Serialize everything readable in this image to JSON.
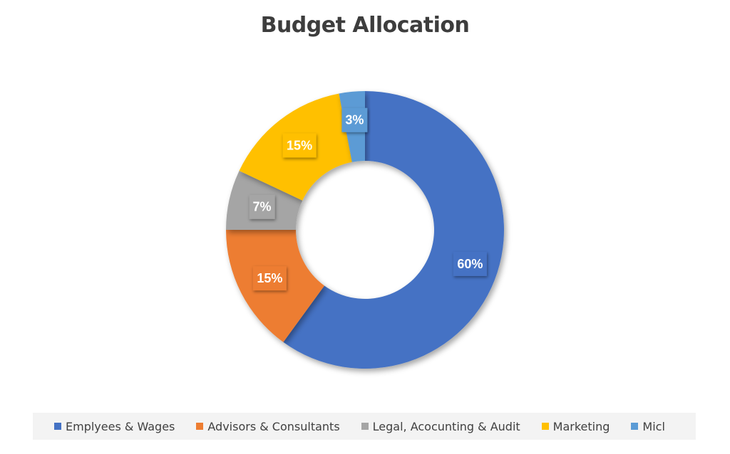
{
  "chart_data": {
    "type": "pie",
    "title": "Budget Allocation",
    "donut": true,
    "legend_position": "bottom",
    "categories": [
      "Emplyees & Wages",
      "Advisors & Consultants",
      "Legal, Acocunting & Audit",
      "Marketing",
      "Micl"
    ],
    "values": [
      60,
      15,
      7,
      15,
      3
    ],
    "data_labels": [
      "60%",
      "15%",
      "7%",
      "15%",
      "3%"
    ],
    "colors": [
      "#4472c4",
      "#ed7d31",
      "#a5a5a5",
      "#ffc000",
      "#5b9bd5"
    ]
  }
}
